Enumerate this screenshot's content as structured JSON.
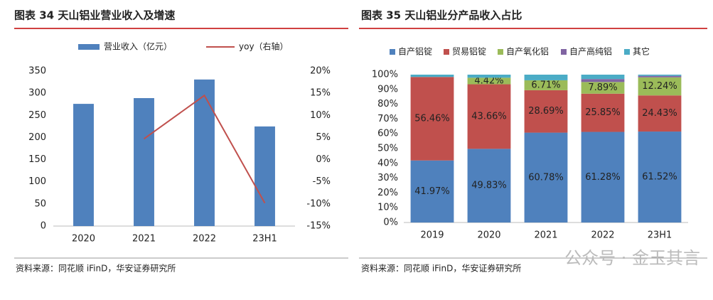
{
  "chart_data": [
    {
      "type": "bar",
      "title": "图表 34 天山铝业营业收入及增速",
      "source": "资料来源：同花顺 iFinD，华安证券研究所",
      "categories": [
        "2020",
        "2021",
        "2022",
        "23H1"
      ],
      "series": [
        {
          "name": "营业收入（亿元）",
          "color": "#4f81bd",
          "values": [
            276,
            289,
            331,
            225
          ]
        },
        {
          "name": "yoy（右轴）",
          "type": "line",
          "axis": "y2",
          "color": "#c0504d",
          "values": [
            null,
            4.7,
            14.5,
            -9.8
          ]
        }
      ],
      "ylim": [
        0,
        350
      ],
      "yticks": [
        0,
        50,
        100,
        150,
        200,
        250,
        300,
        350
      ],
      "y2lim": [
        -15,
        20
      ],
      "y2ticks": [
        {
          "value": -15,
          "label": "-15%"
        },
        {
          "value": -10,
          "label": "-10%"
        },
        {
          "value": -5,
          "label": "-5%"
        },
        {
          "value": 0,
          "label": "0%"
        },
        {
          "value": 5,
          "label": "5%"
        },
        {
          "value": 10,
          "label": "10%"
        },
        {
          "value": 15,
          "label": "15%"
        },
        {
          "value": 20,
          "label": "20%"
        }
      ]
    },
    {
      "type": "stacked_bar",
      "title": "图表 35 天山铝业分产品收入占比",
      "source": "资料来源：同花顺 iFinD，华安证券研究所",
      "categories": [
        "2019",
        "2020",
        "2021",
        "2022",
        "23H1"
      ],
      "series": [
        {
          "name": "自产铝锭",
          "color": "#4f81bd",
          "values": [
            41.97,
            49.83,
            60.78,
            61.28,
            61.52
          ],
          "value_labels": [
            "41.97%",
            "49.83%",
            "60.78%",
            "61.28%",
            "61.52%"
          ]
        },
        {
          "name": "贸易铝锭",
          "color": "#c0504d",
          "values": [
            56.46,
            43.66,
            28.69,
            25.85,
            24.43
          ],
          "value_labels": [
            "56.46%",
            "43.66%",
            "28.69%",
            "25.85%",
            "24.43%"
          ]
        },
        {
          "name": "自产氧化铝",
          "color": "#9bbb59",
          "values": [
            0,
            4.42,
            6.71,
            7.89,
            12.24
          ],
          "value_labels": [
            null,
            "4.42%",
            "6.71%",
            "7.89%",
            "12.24%"
          ]
        },
        {
          "name": "自产高纯铝",
          "color": "#8064a2",
          "values": [
            0,
            0,
            0,
            2.0,
            1.0
          ]
        },
        {
          "name": "其它",
          "color": "#4bacc6",
          "values": [
            1.57,
            2.09,
            3.82,
            2.98,
            0.81
          ]
        }
      ],
      "ylim": [
        0,
        100
      ],
      "yticks": [
        {
          "value": 0,
          "label": "0%"
        },
        {
          "value": 10,
          "label": "10%"
        },
        {
          "value": 20,
          "label": "20%"
        },
        {
          "value": 30,
          "label": "30%"
        },
        {
          "value": 40,
          "label": "40%"
        },
        {
          "value": 50,
          "label": "50%"
        },
        {
          "value": 60,
          "label": "60%"
        },
        {
          "value": 70,
          "label": "70%"
        },
        {
          "value": 80,
          "label": "80%"
        },
        {
          "value": 90,
          "label": "90%"
        },
        {
          "value": 100,
          "label": "100%"
        }
      ]
    }
  ],
  "watermark": "公众号 · 金玉其言"
}
